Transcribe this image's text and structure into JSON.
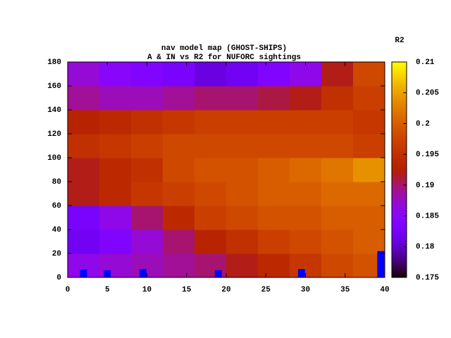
{
  "chart_data": {
    "type": "heatmap",
    "title": "nav model map (GHOST-SHIPS)",
    "subtitle": "A & IN vs R2 for NUFORC sightings",
    "colorbar_label": "R2",
    "x_bins": [
      0,
      4,
      8,
      12,
      16,
      20,
      24,
      28,
      32,
      36,
      40
    ],
    "y_bins": [
      0,
      20,
      40,
      60,
      80,
      100,
      120,
      140,
      160,
      180
    ],
    "values": [
      [
        0.186,
        0.187,
        0.188,
        0.189,
        0.19,
        0.192,
        0.194,
        0.196,
        0.198,
        0.199
      ],
      [
        0.182,
        0.184,
        0.187,
        0.19,
        0.193,
        0.195,
        0.197,
        0.198,
        0.199,
        0.2
      ],
      [
        0.183,
        0.186,
        0.19,
        0.194,
        0.197,
        0.198,
        0.199,
        0.199,
        0.2,
        0.2
      ],
      [
        0.192,
        0.194,
        0.196,
        0.197,
        0.198,
        0.199,
        0.2,
        0.2,
        0.201,
        0.201
      ],
      [
        0.192,
        0.194,
        0.195,
        0.198,
        0.199,
        0.199,
        0.2,
        0.201,
        0.202,
        0.204
      ],
      [
        0.195,
        0.196,
        0.197,
        0.198,
        0.198,
        0.198,
        0.198,
        0.198,
        0.198,
        0.197
      ],
      [
        0.193,
        0.194,
        0.195,
        0.196,
        0.197,
        0.197,
        0.197,
        0.197,
        0.197,
        0.196
      ],
      [
        0.189,
        0.188,
        0.188,
        0.189,
        0.19,
        0.19,
        0.191,
        0.192,
        0.195,
        0.197
      ],
      [
        0.187,
        0.185,
        0.184,
        0.183,
        0.181,
        0.182,
        0.184,
        0.186,
        0.192,
        0.198
      ]
    ],
    "markers": {
      "x": [
        2,
        5,
        9.5,
        19,
        29.5,
        39.5
      ],
      "values": [
        7,
        6,
        7,
        6,
        7,
        22
      ],
      "color": "#0000ff"
    },
    "xlim": [
      0,
      40
    ],
    "xticks": [
      0,
      5,
      10,
      15,
      20,
      25,
      30,
      35,
      40
    ],
    "ylim": [
      0,
      180
    ],
    "yticks": [
      0,
      20,
      40,
      60,
      80,
      100,
      120,
      140,
      160,
      180
    ],
    "zlim": [
      0.175,
      0.21
    ],
    "zticks": [
      0.175,
      0.18,
      0.185,
      0.19,
      0.195,
      0.2,
      0.205,
      0.21
    ]
  }
}
